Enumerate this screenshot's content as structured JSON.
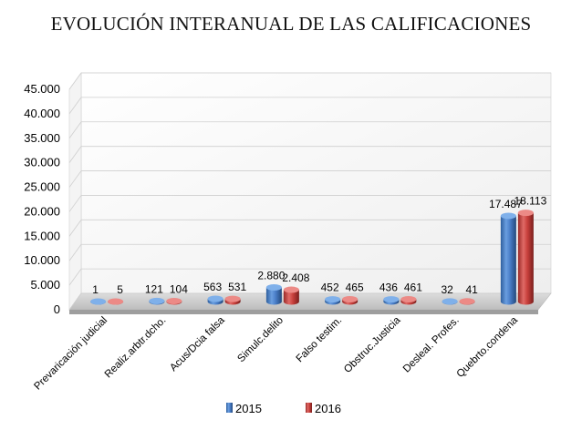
{
  "chart_data": {
    "type": "bar",
    "title": "EVOLUCIÓN INTERANUAL DE LAS CALIFICACIONES",
    "categories": [
      "Prevaricación judicial",
      "Realiz.arbtr.dcho.",
      "Acus/Dcia falsa",
      "Simulc.delito",
      "Falso testim.",
      "Obstruc.Justicia",
      "Desleal. Profes.",
      "Quebrto.condena"
    ],
    "series": [
      {
        "name": "2015",
        "values": [
          1,
          121,
          563,
          2880,
          452,
          436,
          32,
          17487
        ],
        "labels": [
          "1",
          "121",
          "563",
          "2.880",
          "452",
          "436",
          "32",
          "17.487"
        ],
        "color": "#4a7ec8"
      },
      {
        "name": "2016",
        "values": [
          5,
          104,
          531,
          2408,
          465,
          461,
          41,
          18113
        ],
        "labels": [
          "5",
          "104",
          "531",
          "2.408",
          "465",
          "461",
          "41",
          "18.113"
        ],
        "color": "#c8403c"
      }
    ],
    "ylim": [
      0,
      45000
    ],
    "yticks": [
      "0",
      "5.000",
      "10.000",
      "15.000",
      "20.000",
      "25.000",
      "30.000",
      "35.000",
      "40.000",
      "45.000"
    ],
    "grid": true,
    "legend": "bottom",
    "style": "3d-cylinder"
  }
}
